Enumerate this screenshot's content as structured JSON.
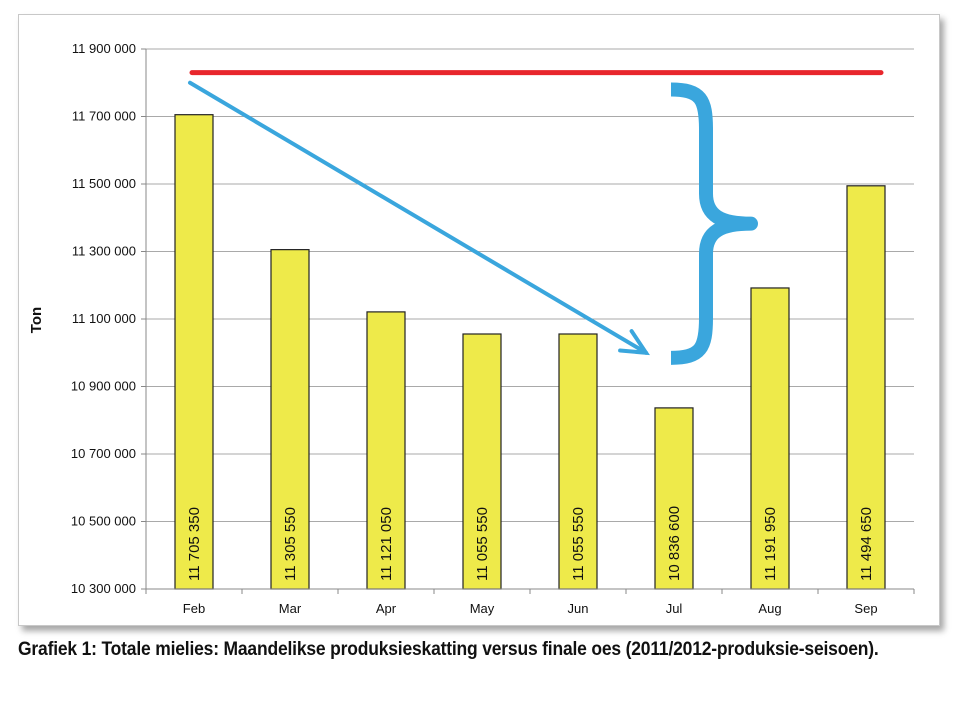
{
  "caption": "Grafiek 1: Totale mielies: Maandelikse produksieskatting versus finale oes (2011/2012-produksie-seisoen).",
  "chart_data": {
    "type": "bar",
    "categories": [
      "Feb",
      "Mar",
      "Apr",
      "May",
      "Jun",
      "Jul",
      "Aug",
      "Sep"
    ],
    "values": [
      11705350,
      11305550,
      11121050,
      11055550,
      11055550,
      10836600,
      11191950,
      11494650
    ],
    "value_labels": [
      "11 705 350",
      "11 305 550",
      "11 121 050",
      "11 055 550",
      "11 055 550",
      "10 836 600",
      "11 191 950",
      "11 494 650"
    ],
    "ylabel": "Ton",
    "ylim": [
      10300000,
      11900000
    ],
    "yticks": [
      10300000,
      10500000,
      10700000,
      10900000,
      11100000,
      11300000,
      11500000,
      11700000,
      11900000
    ],
    "ytick_labels": [
      "10 300 000",
      "10 500 000",
      "10 700 000",
      "10 900 000",
      "11 100 000",
      "11 300 000",
      "11 500 000",
      "11 700 000",
      "11 900 000"
    ],
    "grid": true,
    "bar_color": "#eeea4a",
    "annotations": {
      "red_line": {
        "color": "#e8262c",
        "y": 11830000,
        "from_category": 0,
        "to_category": 7
      },
      "blue_arrow": {
        "color": "#3aa6dd",
        "from": {
          "category": 0,
          "y": 11800000
        },
        "to": {
          "category": 5,
          "y": 11000000
        }
      },
      "blue_brace": {
        "color": "#3aa6dd",
        "category": 5.5,
        "y_top": 11780000,
        "y_bottom": 10985000
      }
    }
  }
}
